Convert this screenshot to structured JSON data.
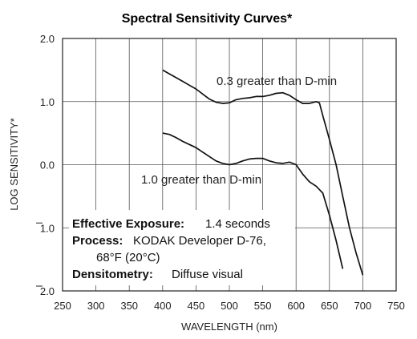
{
  "chart_data": {
    "type": "line",
    "title": "Spectral Sensitivity Curves*",
    "xlabel": "WAVELENGTH (nm)",
    "ylabel": "LOG SENSITIVITY*",
    "xlim": [
      250,
      750
    ],
    "ylim": [
      -2.0,
      2.0
    ],
    "x_ticks": [
      "250",
      "300",
      "350",
      "400",
      "450",
      "500",
      "550",
      "600",
      "650",
      "700",
      "750"
    ],
    "y_ticks": [
      {
        "value": 2.0,
        "label": "2.0",
        "bar": false
      },
      {
        "value": 1.0,
        "label": "1.0",
        "bar": false
      },
      {
        "value": 0.0,
        "label": "0.0",
        "bar": false
      },
      {
        "value": -1.0,
        "label": "1.0",
        "bar": true
      },
      {
        "value": -2.0,
        "label": "2.0",
        "bar": true
      }
    ],
    "grid": true,
    "series": [
      {
        "name": "0.3 greater than D-min",
        "x": [
          400,
          410,
          420,
          430,
          440,
          450,
          460,
          470,
          480,
          490,
          500,
          510,
          520,
          530,
          540,
          550,
          560,
          570,
          580,
          590,
          600,
          610,
          620,
          630,
          635,
          640,
          650,
          660,
          670,
          680,
          690,
          700
        ],
        "y": [
          1.5,
          1.44,
          1.38,
          1.32,
          1.26,
          1.2,
          1.12,
          1.04,
          0.99,
          0.97,
          0.98,
          1.03,
          1.05,
          1.06,
          1.08,
          1.08,
          1.1,
          1.13,
          1.14,
          1.1,
          1.03,
          0.97,
          0.97,
          1.0,
          0.98,
          0.78,
          0.4,
          0.0,
          -0.5,
          -1.0,
          -1.4,
          -1.75
        ]
      },
      {
        "name": "1.0 greater than D-min",
        "x": [
          400,
          410,
          420,
          430,
          440,
          450,
          460,
          470,
          480,
          490,
          500,
          510,
          520,
          530,
          540,
          550,
          560,
          570,
          580,
          590,
          600,
          610,
          620,
          630,
          640,
          650,
          660,
          670
        ],
        "y": [
          0.5,
          0.48,
          0.43,
          0.37,
          0.32,
          0.27,
          0.2,
          0.13,
          0.06,
          0.02,
          0.0,
          0.02,
          0.06,
          0.09,
          0.1,
          0.1,
          0.06,
          0.03,
          0.02,
          0.04,
          0.0,
          -0.15,
          -0.27,
          -0.34,
          -0.45,
          -0.8,
          -1.2,
          -1.65
        ]
      }
    ]
  },
  "curve_labels": {
    "upper": "0.3 greater than D-min",
    "lower": "1.0 greater than D-min"
  },
  "notes": {
    "exposure_key": "Effective Exposure:",
    "exposure_val": "1.4 seconds",
    "process_key": "Process:",
    "process_val_1": "KODAK Developer D-76,",
    "process_val_2": "68°F (20°C)",
    "densitometry_key": "Densitometry:",
    "densitometry_val": "Diffuse visual"
  }
}
